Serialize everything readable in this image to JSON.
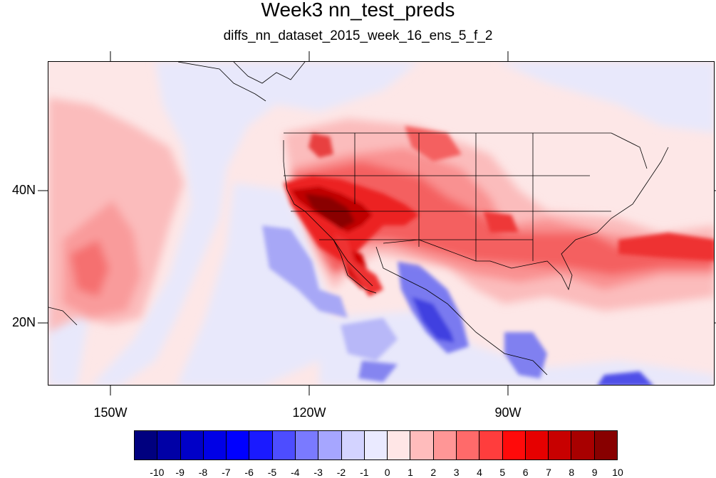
{
  "title": "Week3 nn_test_preds",
  "subtitle": "diffs_nn_dataset_2015_week_16_ens_5_f_2",
  "lat_labels": [
    "40N",
    "20N"
  ],
  "lon_labels": [
    "150W",
    "120W",
    "90W"
  ],
  "colorbar": {
    "labels": [
      "-10",
      "-9",
      "-8",
      "-7",
      "-6",
      "-5",
      "-4",
      "-3",
      "-2",
      "-1",
      "0",
      "1",
      "2",
      "3",
      "4",
      "5",
      "6",
      "7",
      "8",
      "9",
      "10"
    ],
    "colors": [
      "#00007f",
      "#0000a6",
      "#0000c8",
      "#0000e6",
      "#0000ff",
      "#1a1aff",
      "#4d4dff",
      "#7a7aff",
      "#a6a6ff",
      "#d3d3ff",
      "#eaeaff",
      "#ffe6e6",
      "#ffbcbc",
      "#ff9696",
      "#ff6a6a",
      "#ff3d3d",
      "#ff0a0a",
      "#e60000",
      "#c80000",
      "#a80000",
      "#880000"
    ]
  }
}
